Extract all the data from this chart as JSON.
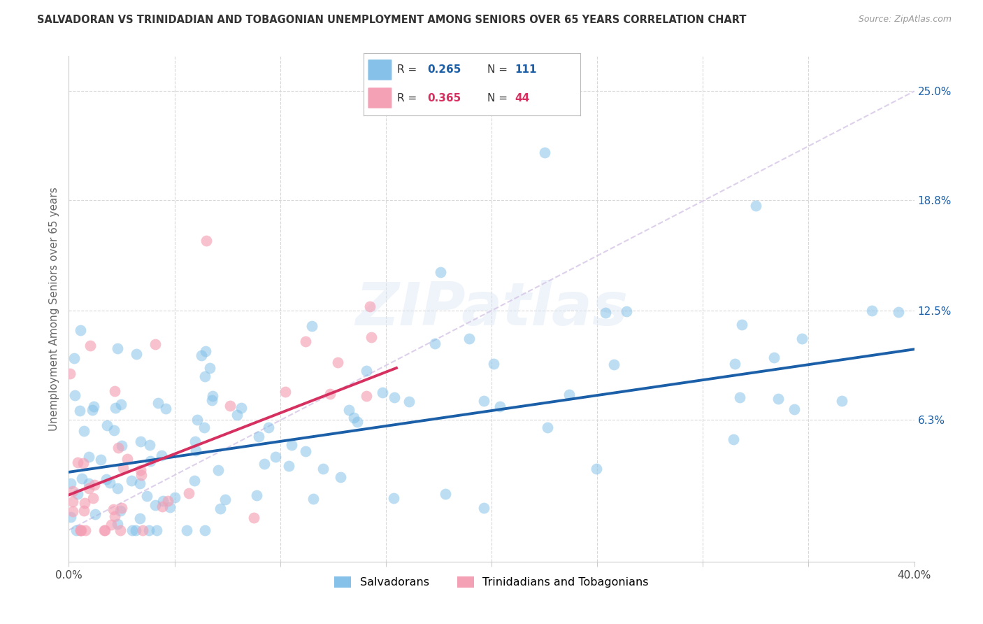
{
  "title": "SALVADORAN VS TRINIDADIAN AND TOBAGONIAN UNEMPLOYMENT AMONG SENIORS OVER 65 YEARS CORRELATION CHART",
  "source": "Source: ZipAtlas.com",
  "ylabel": "Unemployment Among Seniors over 65 years",
  "x_min": 0.0,
  "x_max": 0.4,
  "y_min": -0.018,
  "y_max": 0.27,
  "y_tick_labels_right": [
    "6.3%",
    "12.5%",
    "18.8%",
    "25.0%"
  ],
  "y_tick_vals_right": [
    0.063,
    0.125,
    0.188,
    0.25
  ],
  "legend1_label": "Salvadorans",
  "legend2_label": "Trinidadians and Tobagonians",
  "blue_color": "#85c1e8",
  "pink_color": "#f4a0b5",
  "blue_line_color": "#1a5fa8",
  "pink_line_color": "#d63060",
  "dashed_line_color": "#d8c8e8",
  "R_blue": 0.265,
  "N_blue": 111,
  "R_pink": 0.365,
  "N_pink": 44,
  "watermark": "ZIPatlas",
  "background_color": "#ffffff",
  "grid_color": "#d8d8d8"
}
